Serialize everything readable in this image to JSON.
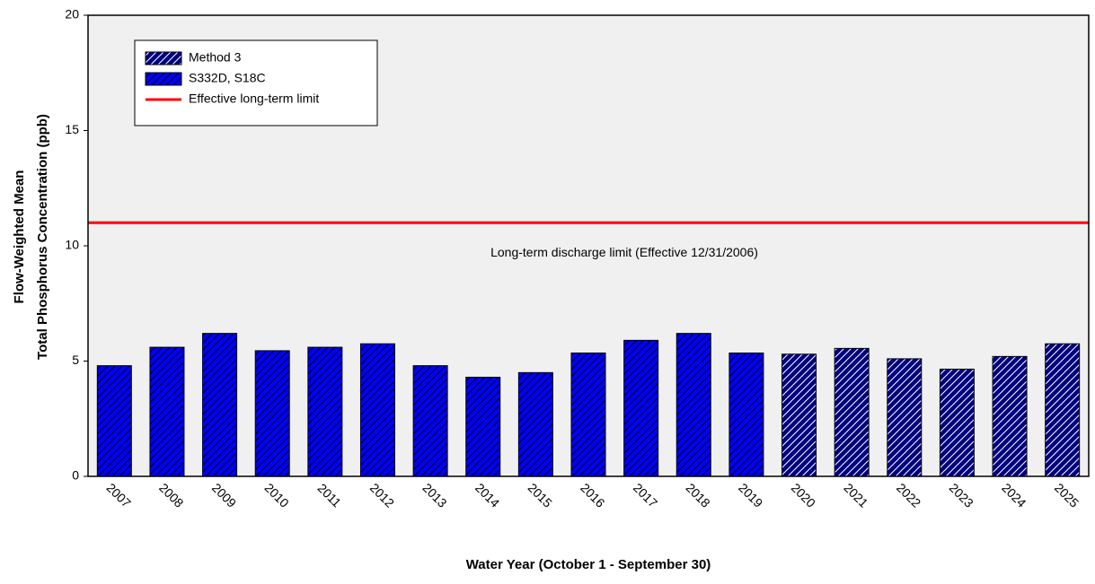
{
  "chart_data": {
    "type": "bar",
    "ylabel": [
      "Flow-Weighted Mean",
      "Total Phosphorus Concentration (ppb)"
    ],
    "xlabel": "Water Year (October 1 - September 30)",
    "categories": [
      "2007",
      "2008",
      "2009",
      "2010",
      "2011",
      "2012",
      "2013",
      "2014",
      "2015",
      "2016",
      "2017",
      "2018",
      "2019",
      "2020",
      "2021",
      "2022",
      "2023",
      "2024",
      "2025"
    ],
    "series": [
      {
        "name": "Method 3",
        "color": "#000080",
        "hatch_color": "#ffffff",
        "values": [
          null,
          null,
          null,
          null,
          null,
          null,
          null,
          null,
          null,
          null,
          null,
          null,
          null,
          5.3,
          5.55,
          5.1,
          4.65,
          5.2,
          5.75
        ]
      },
      {
        "name": "S332D, S18C",
        "color": "#0000ff",
        "hatch_color": "#000000",
        "values": [
          4.8,
          5.6,
          6.2,
          5.45,
          5.6,
          5.75,
          4.8,
          4.3,
          4.5,
          5.35,
          5.9,
          6.2,
          5.35,
          null,
          null,
          null,
          null,
          null,
          null
        ]
      }
    ],
    "limit_line": {
      "name": "Effective long-term limit",
      "value": 11,
      "color": "#ff0000",
      "annotation": "Long-term discharge limit (Effective 12/31/2006)"
    },
    "ylim": [
      0,
      20
    ],
    "yticks": [
      0,
      5,
      10,
      15,
      20
    ],
    "background": "#f0f0f0",
    "legend": "upper left"
  }
}
